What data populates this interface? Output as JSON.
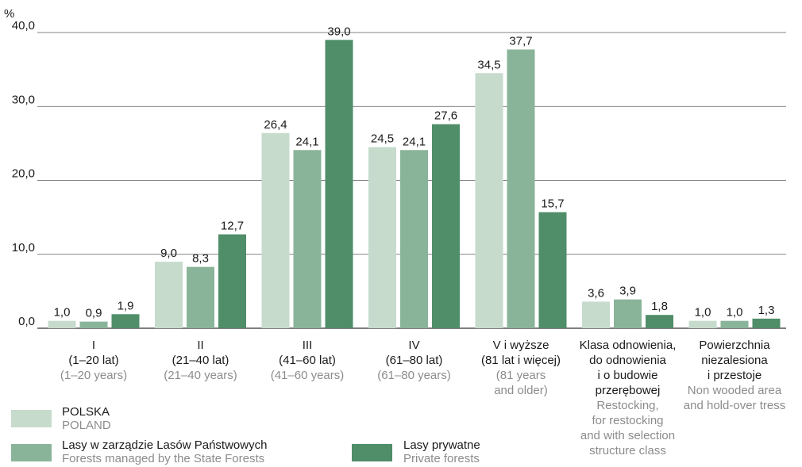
{
  "chart_data": {
    "type": "bar",
    "ylabel": "%",
    "ylim": [
      0,
      40
    ],
    "yticks": [
      "0,0",
      "10,0",
      "20,0",
      "30,0",
      "40,0"
    ],
    "grid": true,
    "colors": [
      "#c6dbcc",
      "#8ab49a",
      "#4f8e69"
    ],
    "categories": [
      {
        "pl": [
          "I",
          "(1–20 lat)"
        ],
        "en": [
          "(1–20 years)"
        ]
      },
      {
        "pl": [
          "II",
          "(21–40 lat)"
        ],
        "en": [
          "(21–40 years)"
        ]
      },
      {
        "pl": [
          "III",
          "(41–60 lat)"
        ],
        "en": [
          "(41–60 years)"
        ]
      },
      {
        "pl": [
          "IV",
          "(61–80 lat)"
        ],
        "en": [
          "(61–80 years)"
        ]
      },
      {
        "pl": [
          "V i wyższe",
          "(81 lat i więcej)"
        ],
        "en": [
          "(81 years",
          "and older)"
        ]
      },
      {
        "pl": [
          "Klasa odnowienia,",
          "do odnowienia",
          "i o budowie",
          "przerębowej"
        ],
        "en": [
          "Restocking,",
          "for restocking",
          "and with selection",
          "structure class"
        ]
      },
      {
        "pl": [
          "Powierzchnia",
          "niezalesiona",
          "i przestoje"
        ],
        "en": [
          "Non wooded area",
          "and hold-over tress"
        ]
      }
    ],
    "series": [
      {
        "name": "POLSKA",
        "name_en": "POLAND",
        "values": [
          1.0,
          9.0,
          26.4,
          24.5,
          34.5,
          3.6,
          1.0
        ],
        "labels": [
          "1,0",
          "9,0",
          "26,4",
          "24,5",
          "34,5",
          "3,6",
          "1,0"
        ]
      },
      {
        "name": "Lasy w zarządzie Lasów Państwowych",
        "name_en": "Forests managed by the State Forests",
        "values": [
          0.9,
          8.3,
          24.1,
          24.1,
          37.7,
          3.9,
          1.0
        ],
        "labels": [
          "0,9",
          "8,3",
          "24,1",
          "24,1",
          "37,7",
          "3,9",
          "1,0"
        ]
      },
      {
        "name": "Lasy prywatne",
        "name_en": "Private forests",
        "values": [
          1.9,
          12.7,
          39.0,
          27.6,
          15.7,
          1.8,
          1.3
        ],
        "labels": [
          "1,9",
          "12,7",
          "39,0",
          "27,6",
          "15,7",
          "1,8",
          "1,3"
        ]
      }
    ]
  }
}
